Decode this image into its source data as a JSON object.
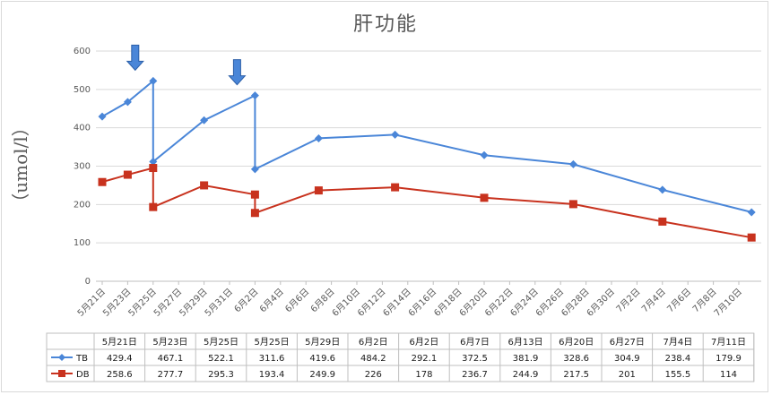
{
  "chart_data": {
    "type": "line",
    "title": "肝功能",
    "ylabel": "（umol/l）",
    "ylim": [
      0,
      600
    ],
    "yticks": [
      0,
      100,
      200,
      300,
      400,
      500,
      600
    ],
    "grid": true,
    "x_axis_labels": [
      "5月21日",
      "5月23日",
      "5月25日",
      "5月27日",
      "5月29日",
      "5月31日",
      "6月2日",
      "6月4日",
      "6月6日",
      "6月8日",
      "6月10日",
      "6月12日",
      "6月14日",
      "6月16日",
      "6月18日",
      "6月20日",
      "6月22日",
      "6月24日",
      "6月26日",
      "6月28日",
      "6月30日",
      "7月2日",
      "7月4日",
      "7月6日",
      "7月8日",
      "7月10日"
    ],
    "categories": [
      "5月21日",
      "5月23日",
      "5月25日",
      "5月25日",
      "5月29日",
      "6月2日",
      "6月2日",
      "6月7日",
      "6月13日",
      "6月20日",
      "6月27日",
      "7月4日",
      "7月11日"
    ],
    "x_day_index": [
      0,
      2,
      4,
      4,
      8,
      12,
      12,
      17,
      23,
      30,
      37,
      44,
      51
    ],
    "segment_breaks_after": [
      2,
      5
    ],
    "series": [
      {
        "name": "TB",
        "color": "#4a86d8",
        "marker": "diamond",
        "values": [
          429.4,
          467.1,
          522.1,
          311.6,
          419.6,
          484.2,
          292.1,
          372.5,
          381.9,
          328.6,
          304.9,
          238.4,
          179.9
        ],
        "value_labels": [
          "429.4",
          "467.1",
          "522.1",
          "311.6",
          "419.6",
          "484.2",
          "292.1",
          "372.5",
          "381.9",
          "328.6",
          "304.9",
          "238.4",
          "179.9"
        ]
      },
      {
        "name": "DB",
        "color": "#c8321e",
        "marker": "square",
        "values": [
          258.6,
          277.7,
          295.3,
          193.4,
          249.9,
          226,
          178,
          236.7,
          244.9,
          217.5,
          201,
          155.5,
          114
        ],
        "value_labels": [
          "258.6",
          "277.7",
          "295.3",
          "193.4",
          "249.9",
          "226",
          "178",
          "236.7",
          "244.9",
          "217.5",
          "201",
          "155.5",
          "114"
        ]
      }
    ],
    "annotations": [
      {
        "type": "down-arrow",
        "at_category_index": 2,
        "color": "#4a86d8"
      },
      {
        "type": "down-arrow",
        "at_category_index": 5,
        "color": "#4a86d8"
      }
    ],
    "legend": "data-table-left"
  }
}
